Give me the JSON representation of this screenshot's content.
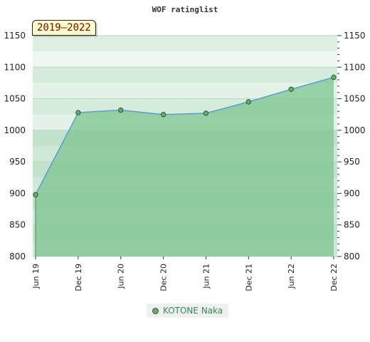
{
  "chart_data": {
    "type": "line",
    "title": "WOF ratinglist",
    "period": "2019–2022",
    "x": [
      "Jun 19",
      "Dec 19",
      "Jun 20",
      "Dec 20",
      "Jun 21",
      "Dec 21",
      "Jun 22",
      "Dec 22"
    ],
    "series": [
      {
        "name": "KOTONE Naka",
        "values": [
          898,
          1028,
          1032,
          1025,
          1027,
          1045,
          1065,
          1084
        ]
      }
    ],
    "ylim": [
      800,
      1150
    ],
    "yticks": [
      800,
      850,
      900,
      950,
      1000,
      1050,
      1100,
      1150
    ],
    "grid": true,
    "legend_position": "bottom-center",
    "colors": {
      "line": "#5b9bd5",
      "area": "#7cc48f",
      "marker_fill": "#5fae6e",
      "marker_stroke": "#2d5a36",
      "legend_text": "#2e8b57",
      "badge_text": "#8b0000",
      "badge_bg": "#ffffcc"
    }
  }
}
